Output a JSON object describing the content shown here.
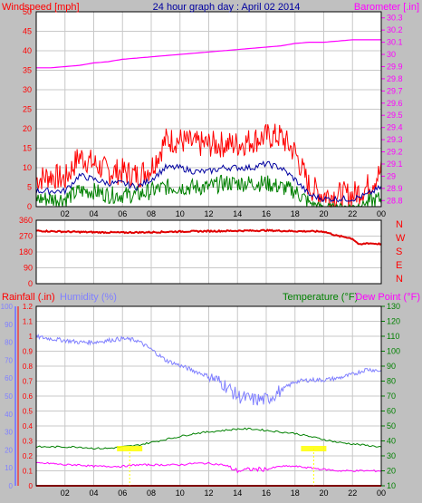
{
  "header": {
    "left": "Windspeed [mph]",
    "center": "24 hour graph day : April 02 2014",
    "right": "Barometer [.in]"
  },
  "colors": {
    "background": "#c0c0c0",
    "panel": "#ffffff",
    "grid": "#c8c8c8",
    "wind_gust": "#ff0000",
    "wind_avg": "#0000a0",
    "wind_min": "#008000",
    "barometer": "#ff00ff",
    "direction": "#e00000",
    "rain": "#ff0000",
    "humidity": "#8080ff",
    "temperature": "#008000",
    "dewpoint": "#ff00ff",
    "marker": "#ffff00"
  },
  "x_axis": {
    "hours": [
      "02",
      "04",
      "06",
      "08",
      "10",
      "12",
      "14",
      "16",
      "18",
      "20",
      "22",
      "00"
    ]
  },
  "chart_data": [
    {
      "type": "line",
      "title": "24 hour graph day : April 02 2014",
      "y_left_label": "Windspeed [mph]",
      "y_right_label": "Barometer [.in]",
      "y_left_ticks": [
        "0",
        "5",
        "10",
        "15",
        "20",
        "25",
        "30",
        "35",
        "40",
        "45",
        "50"
      ],
      "y_left_range": [
        0,
        50
      ],
      "y_right_ticks": [
        "28.8",
        "28.9",
        "29",
        "29.1",
        "29.2",
        "29.3",
        "29.4",
        "29.5",
        "29.6",
        "29.7",
        "29.8",
        "29.9",
        "30",
        "30.1",
        "30.2",
        "30.3"
      ],
      "y_right_range": [
        28.75,
        30.35
      ],
      "x": [
        0,
        1,
        2,
        3,
        4,
        5,
        6,
        7,
        8,
        9,
        10,
        11,
        12,
        13,
        14,
        15,
        16,
        17,
        18,
        19,
        20,
        21,
        22,
        23,
        24
      ],
      "series": [
        {
          "key": "gust",
          "axis": "left",
          "values": [
            7,
            8,
            7,
            13,
            11,
            9,
            9,
            8,
            10,
            17,
            17,
            16,
            16,
            16,
            16,
            17,
            18,
            18,
            14,
            5,
            3,
            3,
            3,
            5,
            9
          ]
        },
        {
          "key": "avg",
          "axis": "left",
          "values": [
            4,
            4,
            4,
            8,
            7,
            6,
            6,
            5,
            7,
            10,
            10,
            9,
            9,
            10,
            10,
            10,
            11,
            10,
            7,
            3,
            2,
            2,
            2,
            3,
            5
          ]
        },
        {
          "key": "min",
          "axis": "left",
          "values": [
            2,
            2,
            2,
            4,
            4,
            3,
            3,
            3,
            4,
            5,
            5,
            5,
            5,
            6,
            6,
            6,
            6,
            5,
            4,
            1,
            0,
            0,
            0,
            1,
            2
          ]
        },
        {
          "key": "barometer",
          "axis": "right",
          "values": [
            29.89,
            29.89,
            29.9,
            29.91,
            29.93,
            29.94,
            29.96,
            29.97,
            29.98,
            29.99,
            30.0,
            30.01,
            30.02,
            30.03,
            30.04,
            30.05,
            30.06,
            30.07,
            30.09,
            30.1,
            30.1,
            30.11,
            30.12,
            30.12,
            30.12
          ]
        }
      ]
    },
    {
      "type": "line",
      "y_labels": [
        "N",
        "W",
        "S",
        "E",
        "N"
      ],
      "y_ticks": [
        "360",
        "270",
        "180",
        "90",
        "0"
      ],
      "y_range": [
        0,
        360
      ],
      "x": [
        0,
        2,
        4,
        6,
        8,
        10,
        12,
        14,
        16,
        18,
        20,
        21,
        21.5,
        22,
        22.5,
        23,
        24
      ],
      "series": [
        {
          "key": "direction",
          "values": [
            300,
            295,
            292,
            290,
            292,
            296,
            298,
            300,
            302,
            298,
            296,
            270,
            265,
            255,
            220,
            230,
            225
          ]
        }
      ]
    },
    {
      "type": "line",
      "labels": {
        "rain": "Rainfall (.in)",
        "humidity": "Humidity (%)",
        "temperature": "Temperature (°F)",
        "dewpoint": "Dew Point (°F)"
      },
      "humidity_ticks": [
        "0",
        "10",
        "20",
        "30",
        "40",
        "50",
        "60",
        "70",
        "80",
        "90",
        "100"
      ],
      "humidity_range": [
        0,
        100
      ],
      "rain_ticks": [
        "0",
        "0.1",
        "0.2",
        "0.3",
        "0.4",
        "0.5",
        "0.6",
        "0.7",
        "0.8",
        "0.9",
        "1",
        "1.1",
        "1.2"
      ],
      "rain_range": [
        0,
        1.2
      ],
      "temp_ticks": [
        "10",
        "20",
        "30",
        "40",
        "50",
        "60",
        "70",
        "80",
        "90",
        "100",
        "110",
        "120",
        "130"
      ],
      "temp_range": [
        10,
        130
      ],
      "x": [
        0,
        1,
        2,
        3,
        4,
        5,
        6,
        7,
        8,
        9,
        10,
        11,
        12,
        13,
        14,
        15,
        16,
        17,
        18,
        19,
        20,
        21,
        22,
        23,
        24
      ],
      "series": [
        {
          "key": "humidity",
          "axis": "humidity",
          "values": [
            83,
            82,
            81,
            80,
            80,
            81,
            82,
            81,
            76,
            70,
            67,
            64,
            61,
            57,
            50,
            48,
            48,
            53,
            58,
            59,
            59,
            60,
            62,
            65,
            64
          ]
        },
        {
          "key": "temperature",
          "axis": "temp",
          "values": [
            36,
            36,
            36,
            36,
            35,
            35,
            36,
            37,
            39,
            41,
            43,
            45,
            46,
            47,
            48,
            48,
            47,
            46,
            45,
            43,
            41,
            39,
            38,
            37,
            36
          ]
        },
        {
          "key": "dewpoint",
          "axis": "temp",
          "values": [
            25,
            25,
            24,
            24,
            23,
            23,
            23,
            24,
            24,
            24,
            24,
            25,
            25,
            24,
            20,
            21,
            21,
            23,
            23,
            22,
            21,
            20,
            20,
            20,
            20
          ]
        },
        {
          "key": "rain",
          "axis": "rain",
          "values": [
            0,
            0,
            0,
            0,
            0,
            0,
            0,
            0,
            0,
            0,
            0,
            0,
            0,
            0,
            0,
            0,
            0,
            0,
            0,
            0,
            0,
            0,
            0,
            0,
            0
          ]
        }
      ]
    }
  ]
}
